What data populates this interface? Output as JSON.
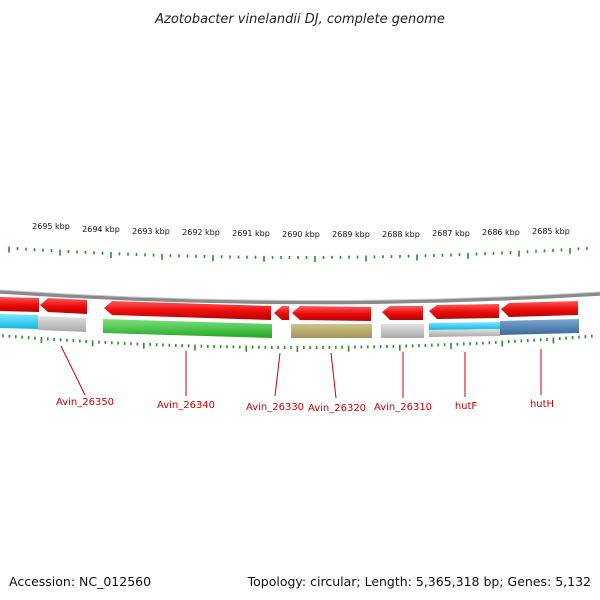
{
  "title": "Azotobacter vinelandii DJ, complete genome",
  "footer": {
    "accession": "Accession: NC_012560",
    "summary": "Topology: circular; Length: 5,365,318 bp; Genes: 5,132"
  },
  "scale": {
    "unit": "kbp",
    "tick_labels": [
      "2695 kbp",
      "2694 kbp",
      "2693 kbp",
      "2692 kbp",
      "2691 kbp",
      "2690 kbp",
      "2689 kbp",
      "2688 kbp",
      "2687 kbp",
      "2686 kbp",
      "2685 kbp"
    ]
  },
  "colors": {
    "backbone": "#8a8a8a",
    "tick": "#2e8b2e",
    "label": "#cc0000",
    "cds": "#ee1111"
  },
  "genes": [
    {
      "label": "Avin_26350",
      "strand": "-",
      "color": "#e8e8e8"
    },
    {
      "label": "Avin_26340",
      "strand": "-",
      "color": "#33cc33"
    },
    {
      "label": "Avin_26330",
      "strand": "-",
      "color": "#cc1111"
    },
    {
      "label": "Avin_26320",
      "strand": "-",
      "color": "#b8ac6a"
    },
    {
      "label": "Avin_26310",
      "strand": "-",
      "color": "#c8c8c8"
    },
    {
      "label": "hutF",
      "strand": "-",
      "color": "#22ccee"
    },
    {
      "label": "hutH",
      "strand": "-",
      "color": "#4a7fb0"
    }
  ]
}
